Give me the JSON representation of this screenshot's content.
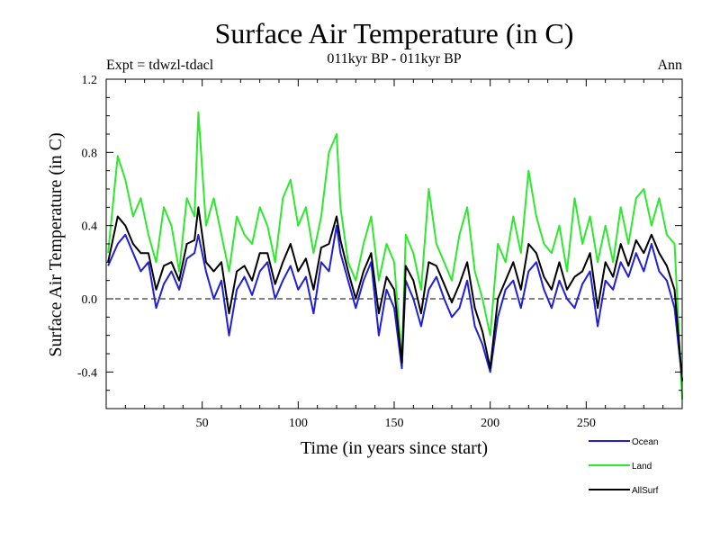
{
  "chart_data": {
    "type": "line",
    "title": "Surface Air Temperature (in C)",
    "subtitle_left": "Expt = tdwzl-tdacl",
    "subtitle_center": "011kyr BP - 011kyr BP",
    "subtitle_right": "Ann",
    "xlabel": "Time (in years since start)",
    "ylabel": "Surface Air Temperature (in C)",
    "xlim": [
      0,
      300
    ],
    "ylim": [
      -0.6,
      1.2
    ],
    "xticks": [
      50,
      100,
      150,
      200,
      250
    ],
    "xtick_labels": [
      "50",
      "100",
      "150",
      "200",
      "250"
    ],
    "yticks": [
      -0.4,
      0.0,
      0.4,
      0.8,
      1.2
    ],
    "ytick_labels": [
      "-0.4",
      "0.0",
      "0.4",
      "0.8",
      "1.2"
    ],
    "reference_line": 0.0,
    "x": [
      1,
      6,
      10,
      14,
      18,
      22,
      26,
      30,
      34,
      38,
      42,
      46,
      48,
      52,
      56,
      60,
      64,
      68,
      72,
      76,
      80,
      84,
      88,
      92,
      96,
      100,
      104,
      108,
      112,
      116,
      120,
      122,
      126,
      130,
      134,
      138,
      142,
      146,
      150,
      154,
      156,
      160,
      164,
      168,
      172,
      176,
      180,
      184,
      188,
      192,
      196,
      200,
      204,
      208,
      212,
      216,
      220,
      224,
      228,
      232,
      236,
      240,
      244,
      248,
      252,
      256,
      260,
      264,
      268,
      272,
      276,
      280,
      284,
      288,
      292,
      296,
      300
    ],
    "series": [
      {
        "name": "Ocean",
        "color": "#1f1fd6",
        "values": [
          0.18,
          0.3,
          0.35,
          0.25,
          0.15,
          0.2,
          -0.05,
          0.08,
          0.15,
          0.05,
          0.22,
          0.25,
          0.35,
          0.15,
          0.0,
          0.1,
          -0.2,
          0.05,
          0.12,
          0.02,
          0.15,
          0.2,
          0.0,
          0.1,
          0.18,
          0.05,
          0.12,
          -0.08,
          0.2,
          0.15,
          0.4,
          0.25,
          0.1,
          -0.05,
          0.1,
          0.2,
          -0.2,
          0.05,
          -0.05,
          -0.38,
          0.1,
          0.0,
          -0.15,
          0.05,
          0.12,
          0.0,
          -0.1,
          -0.05,
          0.1,
          -0.15,
          -0.25,
          -0.4,
          -0.1,
          0.05,
          0.1,
          -0.05,
          0.15,
          0.2,
          0.05,
          -0.05,
          0.1,
          0.0,
          -0.05,
          0.08,
          0.15,
          -0.15,
          0.1,
          0.05,
          0.2,
          0.12,
          0.25,
          0.15,
          0.3,
          0.15,
          0.1,
          -0.05,
          -0.45
        ]
      },
      {
        "name": "Land",
        "color": "#2ee82e",
        "values": [
          0.25,
          0.78,
          0.65,
          0.45,
          0.55,
          0.35,
          0.2,
          0.5,
          0.4,
          0.15,
          0.55,
          0.45,
          1.02,
          0.4,
          0.55,
          0.35,
          0.15,
          0.45,
          0.35,
          0.3,
          0.5,
          0.4,
          0.2,
          0.55,
          0.65,
          0.4,
          0.5,
          0.25,
          0.45,
          0.8,
          0.9,
          0.5,
          0.2,
          0.1,
          0.3,
          0.45,
          0.1,
          0.3,
          0.2,
          -0.35,
          0.35,
          0.25,
          0.05,
          0.6,
          0.3,
          0.2,
          0.1,
          0.35,
          0.5,
          0.15,
          0.0,
          -0.2,
          0.3,
          0.2,
          0.45,
          0.25,
          0.7,
          0.45,
          0.3,
          0.25,
          0.4,
          0.15,
          0.55,
          0.3,
          0.45,
          0.2,
          0.4,
          0.2,
          0.5,
          0.3,
          0.55,
          0.6,
          0.4,
          0.55,
          0.35,
          0.3,
          -0.55
        ]
      },
      {
        "name": "AllSurf",
        "color": "#000000",
        "values": [
          0.2,
          0.45,
          0.4,
          0.3,
          0.25,
          0.25,
          0.05,
          0.18,
          0.2,
          0.1,
          0.3,
          0.32,
          0.5,
          0.2,
          0.15,
          0.2,
          -0.08,
          0.15,
          0.18,
          0.1,
          0.25,
          0.25,
          0.08,
          0.2,
          0.3,
          0.15,
          0.22,
          0.05,
          0.28,
          0.3,
          0.45,
          0.32,
          0.15,
          0.0,
          0.15,
          0.25,
          -0.08,
          0.12,
          0.05,
          -0.35,
          0.18,
          0.1,
          -0.08,
          0.2,
          0.18,
          0.08,
          -0.02,
          0.08,
          0.2,
          -0.05,
          -0.18,
          -0.38,
          0.0,
          0.1,
          0.2,
          0.05,
          0.3,
          0.25,
          0.12,
          0.05,
          0.2,
          0.05,
          0.12,
          0.15,
          0.25,
          -0.05,
          0.2,
          0.12,
          0.3,
          0.18,
          0.32,
          0.25,
          0.35,
          0.25,
          0.18,
          0.05,
          -0.45
        ]
      }
    ],
    "legend_position": "bottom-right"
  }
}
